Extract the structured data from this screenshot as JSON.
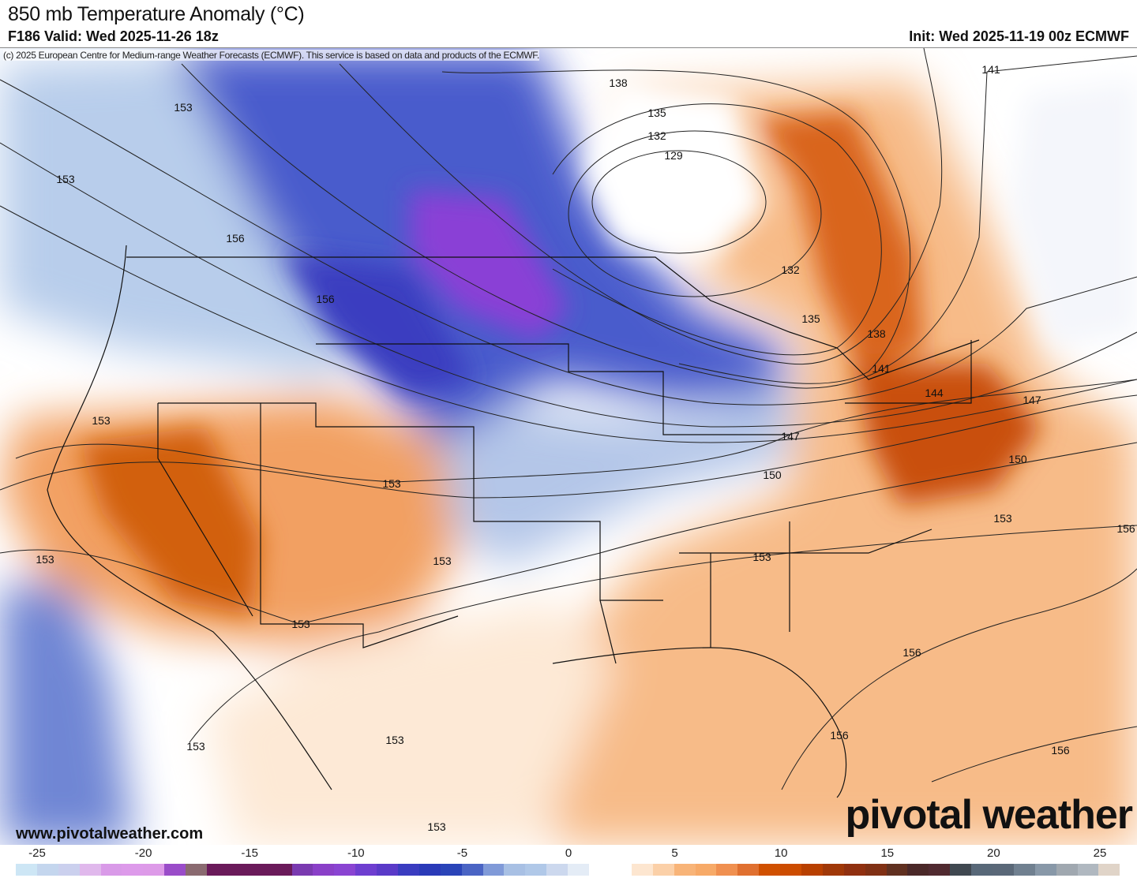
{
  "header": {
    "title": "850 mb Temperature Anomaly (°C)",
    "valid": "F186 Valid: Wed 2025-11-26 18z",
    "init": "Init: Wed 2025-11-19 00z ECMWF"
  },
  "map": {
    "credit": "(c) 2025 European Centre for Medium-range Weather Forecasts (ECMWF). This service is based on data and products of the ECMWF.",
    "website": "www.pivotalweather.com",
    "logo": "pivotal weather",
    "contour_labels": [
      "141",
      "138",
      "135",
      "132",
      "129",
      "153",
      "153",
      "156",
      "156",
      "132",
      "135",
      "138",
      "141",
      "144",
      "147",
      "147",
      "150",
      "150",
      "153",
      "156",
      "153",
      "153",
      "153",
      "153",
      "153",
      "153",
      "156",
      "156",
      "156",
      "153",
      "153",
      "153"
    ]
  },
  "colorbar": {
    "ticks": [
      "-25",
      "-20",
      "-15",
      "-10",
      "-5",
      "0",
      "5",
      "10",
      "15",
      "20",
      "25"
    ],
    "colors": [
      "#cde6f5",
      "#c4d6ee",
      "#cbd0ee",
      "#e0b8ec",
      "#d99ae8",
      "#dd9aea",
      "#dd9ae8",
      "#9a4cc9",
      "#8a6a70",
      "#6a1a5a",
      "#6a1a5a",
      "#6a1a5a",
      "#6a1a5a",
      "#7a3ab0",
      "#8a40c8",
      "#8a44d2",
      "#6e3ed0",
      "#5a3ac8",
      "#3a3cc0",
      "#2a3ab8",
      "#2a44b8",
      "#4a64c4",
      "#809ad8",
      "#a8c0e4",
      "#b0c8e8",
      "#ccd8ee",
      "#e4ecf6",
      "#ffffff",
      "#ffffff",
      "#fde6d0",
      "#fbd0a8",
      "#f8b478",
      "#f7aa68",
      "#f09050",
      "#e07030",
      "#d05000",
      "#cc4c00",
      "#b84000",
      "#a03808",
      "#903010",
      "#803014",
      "#603020",
      "#4a2828",
      "#502a30",
      "#404850",
      "#586878",
      "#5a6878",
      "#708090",
      "#8898a8",
      "#a0a8b0",
      "#b0b8c0",
      "#e0d4c8"
    ]
  }
}
